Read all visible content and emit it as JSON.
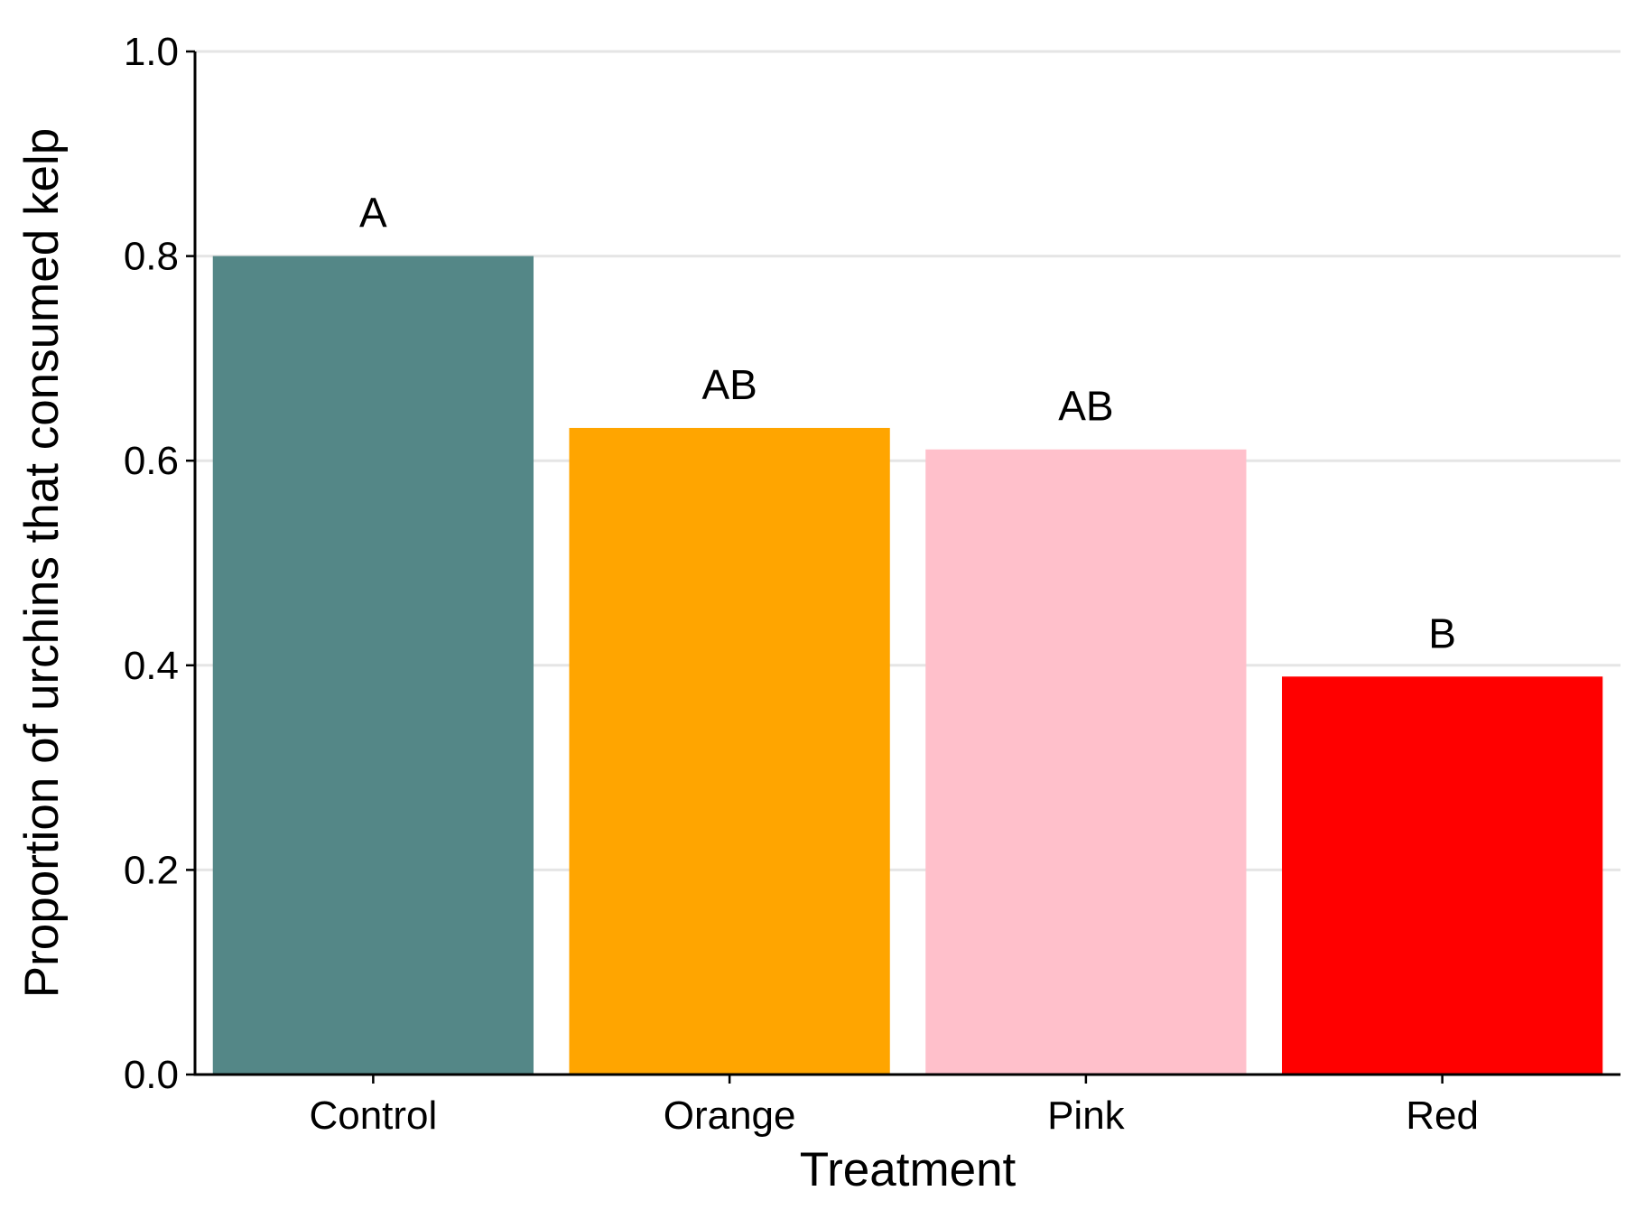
{
  "chart_data": {
    "type": "bar",
    "title": "",
    "xlabel": "Treatment",
    "ylabel": "Proportion of urchins that consumed kelp",
    "categories": [
      "Control",
      "Orange",
      "Pink",
      "Red"
    ],
    "values": [
      0.8,
      0.632,
      0.611,
      0.389
    ],
    "bar_colors": [
      "#548787",
      "#FFA500",
      "#FFC0CB",
      "#FF0000"
    ],
    "annotations": [
      "A",
      "AB",
      "AB",
      "B"
    ],
    "ylim": [
      0,
      1.0
    ],
    "yticks": [
      0.0,
      0.2,
      0.4,
      0.6,
      0.8,
      1.0
    ],
    "ytick_labels": [
      "0.0",
      "0.2",
      "0.4",
      "0.6",
      "0.8",
      "1.0"
    ],
    "grid": "horizontal",
    "gridline_color": "#E5E5E5",
    "axis_color": "#000000",
    "legend": "none"
  }
}
